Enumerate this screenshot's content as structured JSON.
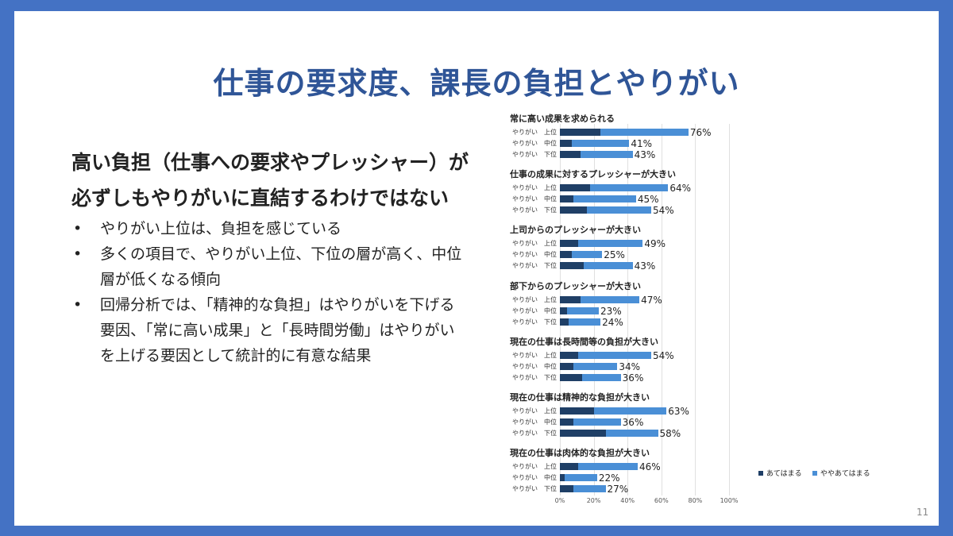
{
  "title": "仕事の要求度、課長の負担とやりがい",
  "heading": "高い負担（仕事への要求やプレッシャー）が必ずしもやりがいに直結するわけではない",
  "bullets": [
    "やりがい上位は、負担を感じている",
    "多くの項目で、やりがい上位、下位の層が高く、中位層が低くなる傾向",
    "回帰分析では、「精神的な負担」はやりがいを下げる要因、「常に高い成果」と「長時間労働」はやりがいを上げる要因として統計的に有意な結果"
  ],
  "page_number": "11",
  "chart_data": {
    "type": "bar",
    "orientation": "horizontal-stacked",
    "row_labels": [
      "やりがい　上位",
      "やりがい　中位",
      "やりがい　下位"
    ],
    "legend": [
      "あてはまる",
      "ややあてはまる"
    ],
    "colors": [
      "#1f3f66",
      "#4a8fd6"
    ],
    "xlim": [
      0,
      100
    ],
    "x_ticks": [
      "0%",
      "20%",
      "40%",
      "60%",
      "80%",
      "100%"
    ],
    "groups": [
      {
        "title": "常に高い成果を求められる",
        "dark": [
          24,
          7,
          12
        ],
        "total": [
          76,
          41,
          43
        ],
        "labels": [
          "76%",
          "41%",
          "43%"
        ]
      },
      {
        "title": "仕事の成果に対するプレッシャーが大きい",
        "dark": [
          18,
          8,
          16
        ],
        "total": [
          64,
          45,
          54
        ],
        "labels": [
          "64%",
          "45%",
          "54%"
        ]
      },
      {
        "title": "上司からのプレッシャーが大きい",
        "dark": [
          11,
          7,
          14
        ],
        "total": [
          49,
          25,
          43
        ],
        "labels": [
          "49%",
          "25%",
          "43%"
        ]
      },
      {
        "title": "部下からのプレッシャーが大きい",
        "dark": [
          12,
          4,
          5
        ],
        "total": [
          47,
          23,
          24
        ],
        "labels": [
          "47%",
          "23%",
          "24%"
        ]
      },
      {
        "title": "現在の仕事は長時間等の負担が大きい",
        "dark": [
          11,
          8,
          13
        ],
        "total": [
          54,
          34,
          36
        ],
        "labels": [
          "54%",
          "34%",
          "36%"
        ]
      },
      {
        "title": "現在の仕事は精神的な負担が大きい",
        "dark": [
          20,
          8,
          27
        ],
        "total": [
          63,
          36,
          58
        ],
        "labels": [
          "63%",
          "36%",
          "58%"
        ]
      },
      {
        "title": "現在の仕事は肉体的な負担が大きい",
        "dark": [
          11,
          3,
          8
        ],
        "total": [
          46,
          22,
          27
        ],
        "labels": [
          "46%",
          "22%",
          "27%"
        ]
      }
    ]
  }
}
